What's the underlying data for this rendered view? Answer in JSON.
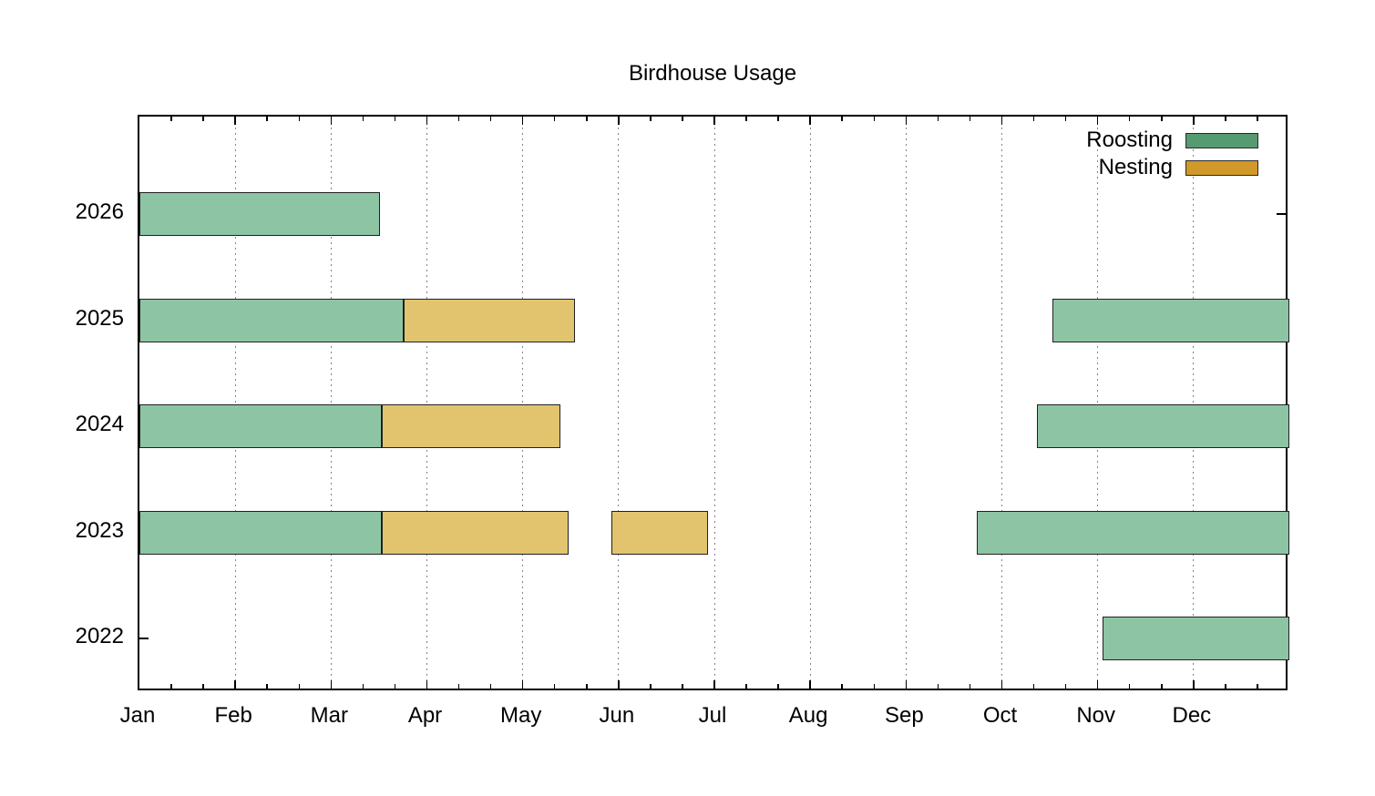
{
  "title": "Birdhouse Usage",
  "colors": {
    "background": "#ffffff",
    "axis": "#000000",
    "grid_dot": "#82828a",
    "bar_border": "#202020",
    "roosting_legend": "#569A71",
    "nesting_legend": "#D0992A",
    "roosting_fill": "#8DC5A4",
    "nesting_fill": "#E3C46E"
  },
  "chart_data": {
    "type": "bar",
    "subtype": "horizontal-gantt",
    "title": "Birdhouse Usage",
    "legend_position": "top-right-inside",
    "grid": "vertical dotted line at each month start",
    "x_axis": {
      "unit": "months",
      "tick_labels": [
        "Jan",
        "Feb",
        "Mar",
        "Apr",
        "May",
        "Jun",
        "Jul",
        "Aug",
        "Sep",
        "Oct",
        "Nov",
        "Dec"
      ],
      "range": "Jan 1 to Dec 31 of each year",
      "minor_ticks_per_month": 2
    },
    "y_axis": {
      "tick_labels": [
        "2026",
        "2025",
        "2024",
        "2023",
        "2022"
      ]
    },
    "series": [
      {
        "name": "Roosting",
        "legend_color": "#569A71",
        "bar_fill": "#8DC5A4"
      },
      {
        "name": "Nesting",
        "legend_color": "#D0992A",
        "bar_fill": "#E3C46E"
      }
    ],
    "bars": [
      {
        "year": "2026",
        "series": "Roosting",
        "start_month": 0,
        "end_month": 2.51,
        "approx_dates": "Jan 1 - Mar 16"
      },
      {
        "year": "2025",
        "series": "Roosting",
        "start_month": 0,
        "end_month": 2.76,
        "approx_dates": "Jan 1 - Mar 23"
      },
      {
        "year": "2025",
        "series": "Nesting",
        "start_month": 2.76,
        "end_month": 4.55,
        "approx_dates": "Mar 23 - May 17"
      },
      {
        "year": "2025",
        "series": "Roosting",
        "start_month": 9.53,
        "end_month": 12,
        "approx_dates": "Oct 17 - Dec 31"
      },
      {
        "year": "2024",
        "series": "Roosting",
        "start_month": 0,
        "end_month": 2.53,
        "approx_dates": "Jan 1 - Mar 17"
      },
      {
        "year": "2024",
        "series": "Nesting",
        "start_month": 2.53,
        "end_month": 4.39,
        "approx_dates": "Mar 17 - May 12"
      },
      {
        "year": "2024",
        "series": "Roosting",
        "start_month": 9.37,
        "end_month": 12,
        "approx_dates": "Oct 12 - Dec 31"
      },
      {
        "year": "2023",
        "series": "Roosting",
        "start_month": 0,
        "end_month": 2.53,
        "approx_dates": "Jan 1 - Mar 17"
      },
      {
        "year": "2023",
        "series": "Nesting",
        "start_month": 2.53,
        "end_month": 4.48,
        "approx_dates": "Mar 17 - May 15"
      },
      {
        "year": "2023",
        "series": "Nesting",
        "start_month": 4.93,
        "end_month": 5.93,
        "approx_dates": "May 29 - Jun 28"
      },
      {
        "year": "2023",
        "series": "Roosting",
        "start_month": 8.74,
        "end_month": 12,
        "approx_dates": "Sep 23 - Dec 31"
      },
      {
        "year": "2022",
        "series": "Roosting",
        "start_month": 10.05,
        "end_month": 12,
        "approx_dates": "Nov 2 - Dec 31"
      }
    ]
  }
}
